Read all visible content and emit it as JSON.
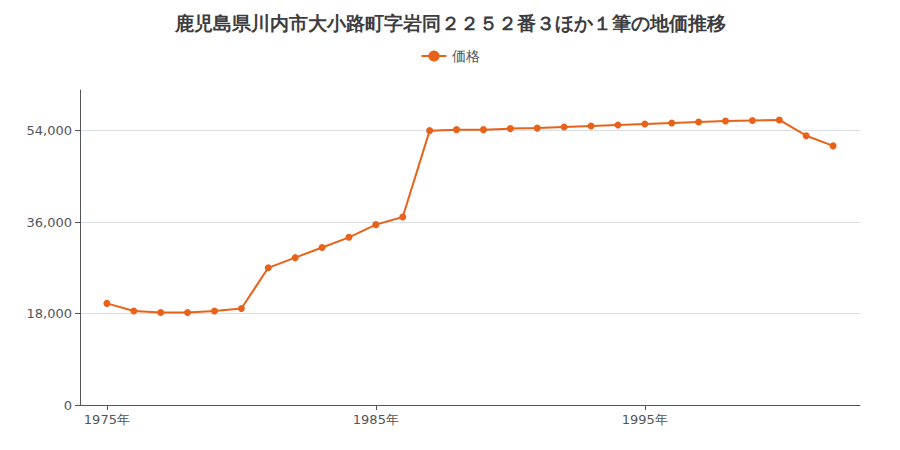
{
  "chart_data": {
    "type": "line",
    "title": "鹿児島県川内市大小路町字岩同２２５２番３ほか１筆の地価推移",
    "x": [
      1975,
      1976,
      1977,
      1978,
      1979,
      1980,
      1981,
      1982,
      1983,
      1984,
      1985,
      1986,
      1987,
      1988,
      1989,
      1990,
      1991,
      1992,
      1993,
      1994,
      1995,
      1996,
      1997,
      1998,
      1999,
      2000,
      2001,
      2002
    ],
    "series": [
      {
        "name": "価格",
        "color": "#e8621a",
        "marker": "circle",
        "values": [
          20000,
          18500,
          18200,
          18200,
          18500,
          19000,
          27000,
          29000,
          31000,
          33000,
          35500,
          37000,
          54000,
          54200,
          54200,
          54400,
          54500,
          54700,
          54900,
          55100,
          55300,
          55500,
          55700,
          55900,
          56000,
          56100,
          53000,
          51000
        ]
      }
    ],
    "xlim": [
      1974,
      2003
    ],
    "xticks": [
      {
        "value": 1975,
        "label": "1975年"
      },
      {
        "value": 1985,
        "label": "1985年"
      },
      {
        "value": 1995,
        "label": "1995年"
      }
    ],
    "ylim": [
      0,
      62000
    ],
    "yticks": [
      0,
      {
        "value": 18000,
        "label": "18,000"
      },
      {
        "value": 36000,
        "label": "36,000"
      },
      {
        "value": 54000,
        "label": "54,000"
      }
    ],
    "grid": true,
    "legend": "top"
  }
}
